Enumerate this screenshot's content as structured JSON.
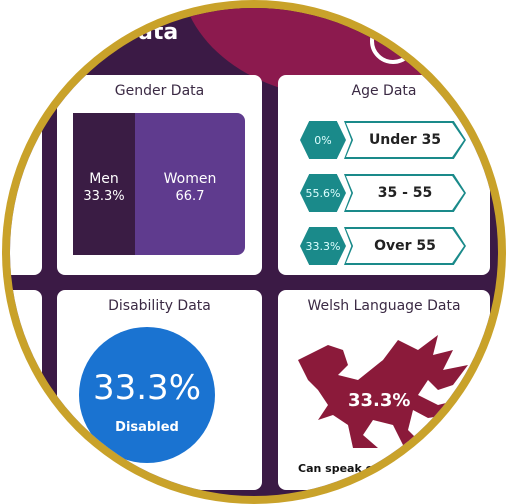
{
  "header": {
    "title": "ata"
  },
  "gender": {
    "title": "Gender Data",
    "men_label": "Men",
    "men_value": "33.3%",
    "women_label": "Women",
    "women_value": "66.7"
  },
  "age": {
    "title": "Age Data",
    "rows": [
      {
        "value": "0%",
        "label": "Under 35"
      },
      {
        "value": "55.6%",
        "label": "35 - 55"
      },
      {
        "value": "33.3%",
        "label": "Over 55"
      }
    ]
  },
  "disability": {
    "title": "Disability Data",
    "value": "33.3%",
    "label": "Disabled"
  },
  "welsh": {
    "title": "Welsh Language Data",
    "value": "33.3%",
    "caption": "Can speak or re"
  }
}
